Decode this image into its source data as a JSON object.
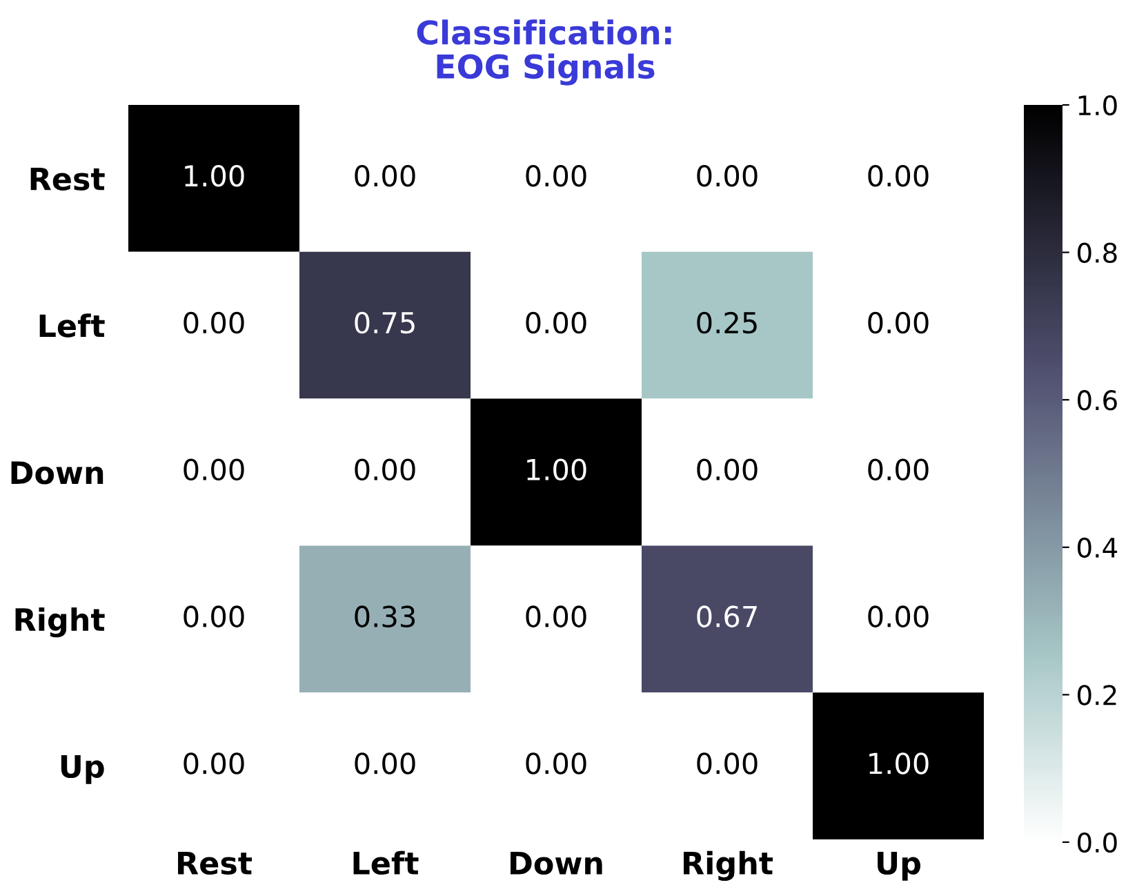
{
  "chart_data": {
    "type": "heatmap",
    "title": "Classification:\nEOG Signals",
    "categories": [
      "Rest",
      "Left",
      "Down",
      "Right",
      "Up"
    ],
    "y_categories": [
      "Rest",
      "Left",
      "Down",
      "Right",
      "Up"
    ],
    "cells": [
      [
        1.0,
        0.0,
        0.0,
        0.0,
        0.0
      ],
      [
        0.0,
        0.75,
        0.0,
        0.25,
        0.0
      ],
      [
        0.0,
        0.0,
        1.0,
        0.0,
        0.0
      ],
      [
        0.0,
        0.33,
        0.0,
        0.67,
        0.0
      ],
      [
        0.0,
        0.0,
        0.0,
        0.0,
        1.0
      ]
    ],
    "cell_labels": [
      [
        "1.00",
        "0.00",
        "0.00",
        "0.00",
        "0.00"
      ],
      [
        "0.00",
        "0.75",
        "0.00",
        "0.25",
        "0.00"
      ],
      [
        "0.00",
        "0.00",
        "1.00",
        "0.00",
        "0.00"
      ],
      [
        "0.00",
        "0.33",
        "0.00",
        "0.67",
        "0.00"
      ],
      [
        "0.00",
        "0.00",
        "0.00",
        "0.00",
        "1.00"
      ]
    ],
    "clim": [
      0,
      1
    ],
    "cticks": [
      {
        "value": 0,
        "label": "0.0"
      },
      {
        "value": 0.2,
        "label": "0.2"
      },
      {
        "value": 0.4,
        "label": "0.4"
      },
      {
        "value": 0.6,
        "label": "0.6"
      },
      {
        "value": 0.8,
        "label": "0.8"
      },
      {
        "value": 1,
        "label": "1.0"
      }
    ],
    "grid": false
  }
}
